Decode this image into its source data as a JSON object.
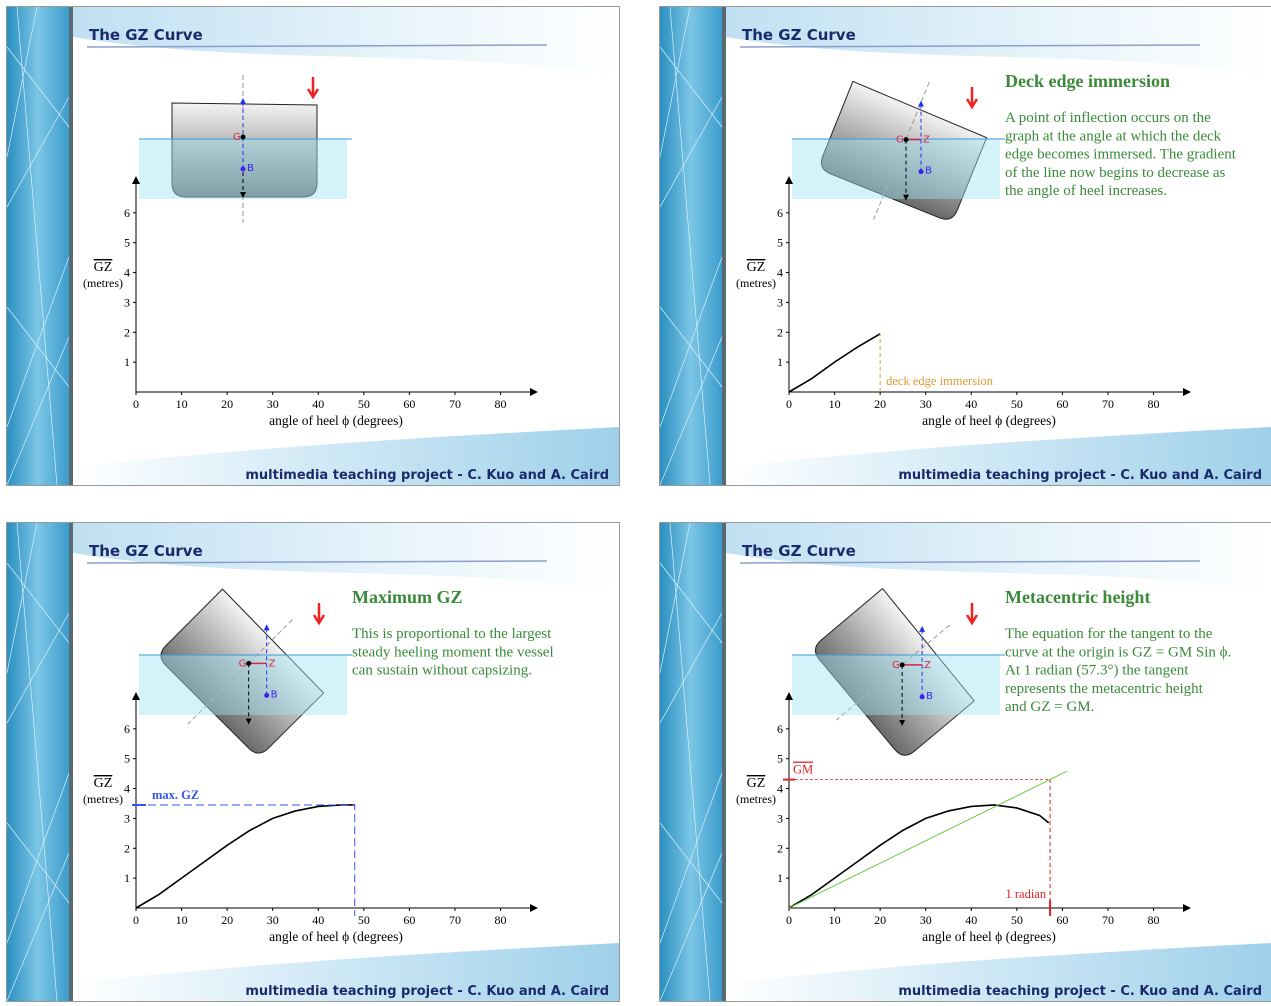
{
  "slides": [
    {
      "title": "The GZ Curve",
      "footer": "multimedia teaching project - C. Kuo and A. Caird",
      "ship_labels": [
        "G",
        "B"
      ]
    },
    {
      "title": "The GZ Curve",
      "footer": "multimedia teaching project - C. Kuo and A. Caird",
      "ship_labels": [
        "G",
        "Z",
        "B"
      ],
      "heading": "Deck edge immersion",
      "body": [
        "A point of inflection occurs on the",
        "graph at the angle at which the deck",
        "edge becomes immersed. The gradient",
        "of the line now begins to decrease as",
        "the angle of heel increases."
      ]
    },
    {
      "title": "The GZ Curve",
      "footer": "multimedia teaching project - C. Kuo and A. Caird",
      "ship_labels": [
        "G",
        "Z",
        "B"
      ],
      "heading": "Maximum GZ",
      "body": [
        "This is proportional to the largest",
        "steady heeling moment the vessel",
        "can sustain without capsizing."
      ]
    },
    {
      "title": "The GZ Curve",
      "footer": "multimedia teaching project - C. Kuo and A. Caird",
      "ship_labels": [
        "G",
        "Z",
        "B"
      ],
      "heading": "Metacentric height",
      "body": [
        "The equation for the tangent to the",
        "curve at the origin is GZ = GM Sin ϕ.",
        "At 1 radian (57.3°) the tangent",
        "represents the metacentric height",
        "and GZ = GM."
      ]
    }
  ],
  "chart_data": [
    {
      "type": "line",
      "y_label": "GZ",
      "y_unit": "(metres)",
      "x_label": "angle of heel ϕ  (degrees)",
      "xlim": [
        0,
        88
      ],
      "ylim": [
        0,
        7.2
      ],
      "xticks": [
        0,
        10,
        20,
        30,
        40,
        50,
        60,
        70,
        80
      ],
      "yticks": [
        1,
        2,
        3,
        4,
        5,
        6
      ],
      "series": [],
      "annotations": []
    },
    {
      "type": "line",
      "y_label": "GZ",
      "y_unit": "(metres)",
      "x_label": "angle of heel ϕ  (degrees)",
      "xlim": [
        0,
        88
      ],
      "ylim": [
        0,
        7.2
      ],
      "xticks": [
        0,
        10,
        20,
        30,
        40,
        50,
        60,
        70,
        80
      ],
      "yticks": [
        1,
        2,
        3,
        4,
        5,
        6
      ],
      "series": [
        {
          "color": "#000000",
          "x": [
            0,
            5,
            10,
            15,
            20
          ],
          "values": [
            0,
            0.45,
            1.0,
            1.5,
            1.95
          ]
        }
      ],
      "annotations": [
        {
          "kind": "vline",
          "x": 20,
          "y": 1.95,
          "text": "deck edge immersion",
          "color": "#e09a30"
        }
      ]
    },
    {
      "type": "line",
      "y_label": "GZ",
      "y_unit": "(metres)",
      "x_label": "angle of heel ϕ  (degrees)",
      "xlim": [
        0,
        88
      ],
      "ylim": [
        0,
        7.2
      ],
      "xticks": [
        0,
        10,
        20,
        30,
        40,
        50,
        60,
        70,
        80
      ],
      "yticks": [
        1,
        2,
        3,
        4,
        5,
        6
      ],
      "series": [
        {
          "color": "#000000",
          "x": [
            0,
            5,
            10,
            15,
            20,
            25,
            30,
            35,
            40,
            45,
            48
          ],
          "values": [
            0,
            0.45,
            1.0,
            1.55,
            2.1,
            2.6,
            3.0,
            3.25,
            3.4,
            3.45,
            3.45
          ]
        }
      ],
      "annotations": [
        {
          "kind": "corner",
          "x": 48,
          "y": 3.45,
          "text": "max. GZ",
          "color": "#3355ee"
        }
      ]
    },
    {
      "type": "line",
      "y_label": "GZ",
      "y_unit": "(metres)",
      "x_label": "angle of heel ϕ  (degrees)",
      "xlim": [
        0,
        88
      ],
      "ylim": [
        0,
        7.2
      ],
      "xticks": [
        0,
        10,
        20,
        30,
        40,
        50,
        60,
        70,
        80
      ],
      "yticks": [
        1,
        2,
        3,
        4,
        5,
        6
      ],
      "series": [
        {
          "color": "#000000",
          "x": [
            0,
            5,
            10,
            15,
            20,
            25,
            30,
            35,
            40,
            45,
            50,
            55,
            57
          ],
          "values": [
            0,
            0.45,
            1.0,
            1.55,
            2.1,
            2.6,
            3.0,
            3.25,
            3.4,
            3.45,
            3.35,
            3.1,
            2.85
          ]
        },
        {
          "color": "#66cc44",
          "x": [
            0,
            61
          ],
          "values": [
            0,
            4.58
          ]
        }
      ],
      "annotations": [
        {
          "kind": "hline",
          "x": 57.3,
          "y": 4.3,
          "text": "GM",
          "color": "#dd2222"
        },
        {
          "kind": "vline",
          "x": 57.3,
          "y": 4.3,
          "text": "1 radian",
          "color": "#dd2222"
        }
      ]
    }
  ]
}
